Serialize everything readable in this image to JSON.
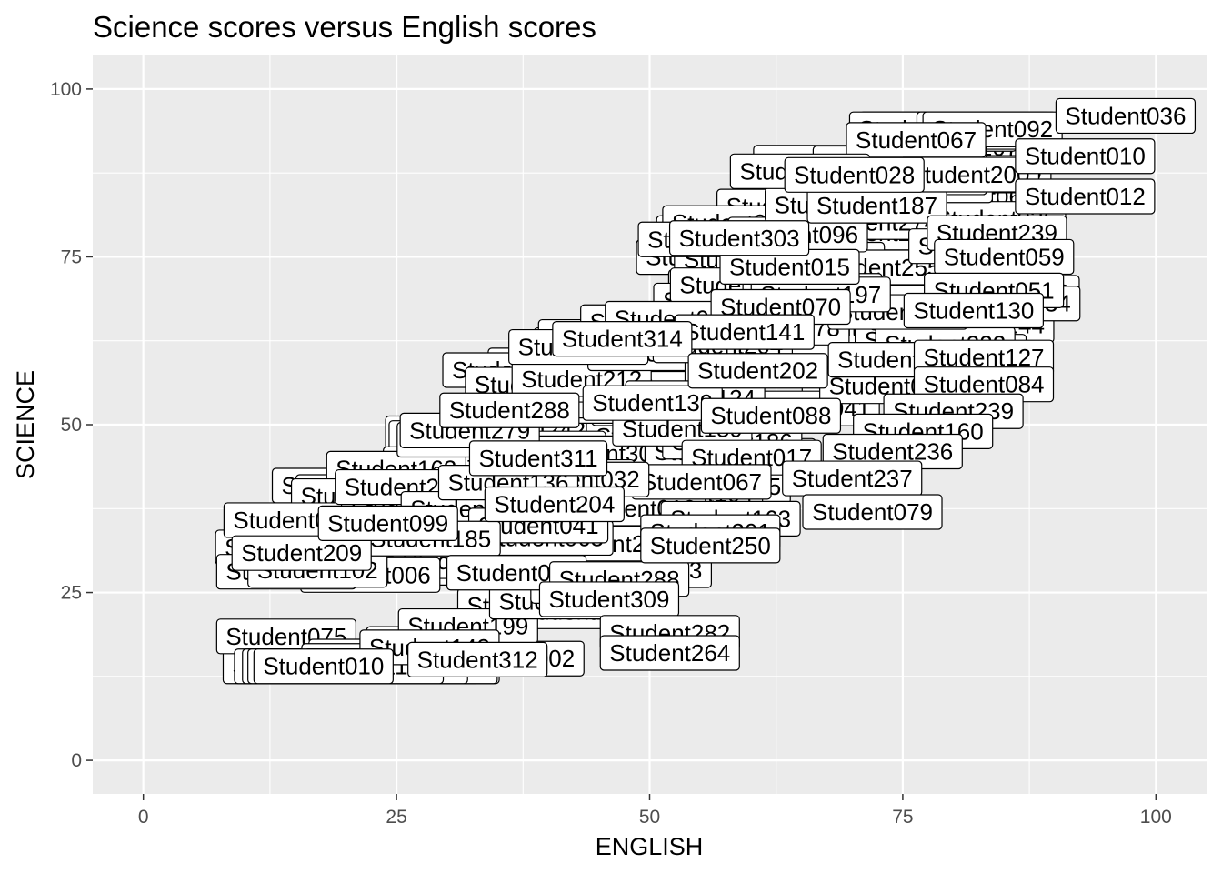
{
  "chart_data": {
    "type": "scatter",
    "title": "Science scores versus English scores",
    "xlabel": "ENGLISH",
    "ylabel": "SCIENCE",
    "xlim": [
      -5,
      105
    ],
    "ylim": [
      -5,
      105
    ],
    "x_ticks": [
      0,
      25,
      50,
      75,
      100
    ],
    "y_ticks": [
      0,
      25,
      50,
      75,
      100
    ],
    "x_tick_labels": [
      "0",
      "25",
      "50",
      "75",
      "100"
    ],
    "y_tick_labels": [
      "0",
      "25",
      "50",
      "75",
      "100"
    ],
    "grid": true,
    "legend": "none",
    "panel_color": "#ebebeb",
    "grid_color": "#ffffff",
    "points": [
      {
        "label": "Student036",
        "x": 97,
        "y": 96
      },
      {
        "label": "Student010",
        "x": 93,
        "y": 90
      },
      {
        "label": "Student012",
        "x": 93,
        "y": 84
      },
      {
        "label": "Student059",
        "x": 85,
        "y": 75
      },
      {
        "label": "Student051",
        "x": 84,
        "y": 70
      },
      {
        "label": "Student130",
        "x": 82,
        "y": 67
      },
      {
        "label": "Student127",
        "x": 83,
        "y": 60
      },
      {
        "label": "Student084",
        "x": 83,
        "y": 56
      },
      {
        "label": "Student239",
        "x": 80,
        "y": 52
      },
      {
        "label": "Student160",
        "x": 77,
        "y": 49
      },
      {
        "label": "Student236",
        "x": 74,
        "y": 46
      },
      {
        "label": "Student237",
        "x": 70,
        "y": 42
      },
      {
        "label": "Student079",
        "x": 72,
        "y": 37
      },
      {
        "label": "Student163",
        "x": 58,
        "y": 36
      },
      {
        "label": "Student311",
        "x": 39,
        "y": 45
      },
      {
        "label": "Student288",
        "x": 47,
        "y": 27
      },
      {
        "label": "Student309",
        "x": 46,
        "y": 24
      },
      {
        "label": "Student282",
        "x": 52,
        "y": 19
      },
      {
        "label": "Student264",
        "x": 52,
        "y": 16
      },
      {
        "label": "Student312",
        "x": 33,
        "y": 15
      },
      {
        "label": "Student201",
        "x": 56,
        "y": 34
      },
      {
        "label": "Student250",
        "x": 56,
        "y": 32
      }
    ]
  }
}
